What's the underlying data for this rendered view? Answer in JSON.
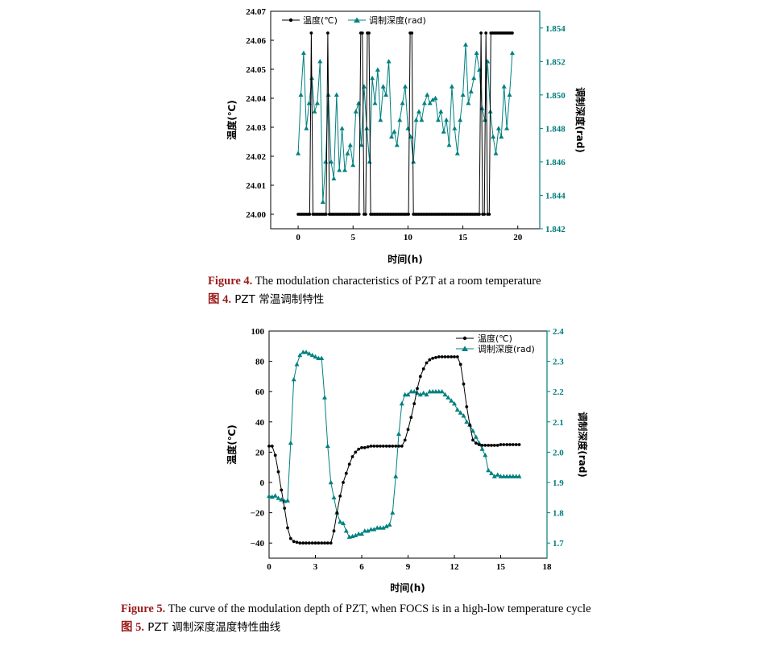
{
  "figure4": {
    "caption_en_label": "Figure 4.",
    "caption_en_text": " The modulation characteristics of PZT at a room temperature",
    "caption_cn_label": "图 4.",
    "caption_cn_text": " PZT 常温调制特性",
    "colors": {
      "temperature": "#000000",
      "depth": "#008080"
    },
    "chart_data": {
      "type": "line",
      "xlabel": "时间(h)",
      "ylabel_left": "温度(℃)",
      "ylabel_right": "调制深度(rad)",
      "xlim": [
        -2.5,
        22
      ],
      "x_ticks": [
        "0",
        "5",
        "10",
        "15",
        "20"
      ],
      "x_tick_values": [
        0,
        5,
        10,
        15,
        20
      ],
      "ylim_left": [
        23.995,
        24.07
      ],
      "y_ticks_left": [
        "24.00",
        "24.01",
        "24.02",
        "24.03",
        "24.04",
        "24.05",
        "24.06",
        "24.07"
      ],
      "y_tick_values_left": [
        24.0,
        24.01,
        24.02,
        24.03,
        24.04,
        24.05,
        24.06,
        24.07
      ],
      "ylim_right": [
        1.842,
        1.855
      ],
      "y_ticks_right": [
        "1.842",
        "1.844",
        "1.846",
        "1.848",
        "1.850",
        "1.852",
        "1.854"
      ],
      "y_tick_values_right": [
        1.842,
        1.844,
        1.846,
        1.848,
        1.85,
        1.852,
        1.854
      ],
      "legend": [
        "温度(℃)",
        "调制深度(rad)"
      ],
      "series": [
        {
          "name": "温度(℃)",
          "axis": "left",
          "x": [
            0.0,
            0.15,
            0.3,
            0.45,
            0.6,
            0.75,
            0.9,
            1.05,
            1.2,
            1.35,
            1.5,
            1.65,
            1.8,
            1.95,
            2.1,
            2.25,
            2.4,
            2.55,
            2.7,
            2.85,
            3.0,
            3.15,
            3.3,
            3.45,
            3.6,
            3.75,
            3.9,
            4.05,
            4.2,
            4.35,
            4.5,
            4.65,
            4.8,
            4.95,
            5.1,
            5.25,
            5.4,
            5.55,
            5.7,
            5.85,
            6.0,
            6.15,
            6.3,
            6.45,
            6.6,
            6.75,
            6.9,
            7.05,
            7.2,
            7.35,
            7.5,
            7.65,
            7.8,
            7.95,
            8.1,
            8.25,
            8.4,
            8.55,
            8.7,
            8.85,
            9.0,
            9.15,
            9.3,
            9.45,
            9.6,
            9.75,
            9.9,
            10.05,
            10.2,
            10.35,
            10.5,
            10.65,
            10.8,
            10.95,
            11.1,
            11.25,
            11.4,
            11.55,
            11.7,
            11.85,
            12.0,
            12.15,
            12.3,
            12.45,
            12.6,
            12.75,
            12.9,
            13.05,
            13.2,
            13.35,
            13.5,
            13.65,
            13.8,
            13.95,
            14.1,
            14.25,
            14.4,
            14.55,
            14.7,
            14.85,
            15.0,
            15.15,
            15.3,
            15.45,
            15.6,
            15.75,
            15.9,
            16.05,
            16.2,
            16.35,
            16.5,
            16.65,
            16.8,
            16.95,
            17.1,
            17.25,
            17.4,
            17.55,
            17.7,
            17.85,
            18.0,
            18.15,
            18.3,
            18.45,
            18.6,
            18.75,
            18.9,
            19.05,
            19.2,
            19.35,
            19.5
          ],
          "values": [
            24.0,
            24.0,
            24.0,
            24.0,
            24.0,
            24.0,
            24.0,
            24.0,
            24.0625,
            24.0,
            24.0,
            24.0,
            24.0,
            24.0,
            24.0,
            24.0,
            24.0,
            24.0,
            24.0625,
            24.0,
            24.0,
            24.0,
            24.0,
            24.0,
            24.0,
            24.0,
            24.0,
            24.0,
            24.0,
            24.0,
            24.0,
            24.0,
            24.0,
            24.0,
            24.0,
            24.0,
            24.0,
            24.0,
            24.0625,
            24.0625,
            24.0,
            24.0,
            24.0625,
            24.0625,
            24.0,
            24.0,
            24.0,
            24.0,
            24.0,
            24.0,
            24.0,
            24.0,
            24.0,
            24.0,
            24.0,
            24.0,
            24.0,
            24.0,
            24.0,
            24.0,
            24.0,
            24.0,
            24.0,
            24.0,
            24.0,
            24.0,
            24.0,
            24.0,
            24.0625,
            24.0625,
            24.0,
            24.0,
            24.0,
            24.0,
            24.0,
            24.0,
            24.0,
            24.0,
            24.0,
            24.0,
            24.0,
            24.0,
            24.0,
            24.0,
            24.0,
            24.0,
            24.0,
            24.0,
            24.0,
            24.0,
            24.0,
            24.0,
            24.0,
            24.0,
            24.0,
            24.0,
            24.0,
            24.0,
            24.0,
            24.0,
            24.0,
            24.0,
            24.0,
            24.0,
            24.0,
            24.0,
            24.0,
            24.0,
            24.0,
            24.0,
            24.0,
            24.0625,
            24.0,
            24.0,
            24.0625,
            24.0,
            24.0,
            24.0625,
            24.0625,
            24.0625,
            24.0625,
            24.0625,
            24.0625,
            24.0625,
            24.0625,
            24.0625,
            24.0625,
            24.0625,
            24.0625,
            24.0625,
            24.0625
          ]
        },
        {
          "name": "调制深度(rad)",
          "axis": "right",
          "x": [
            0.0,
            0.25,
            0.5,
            0.75,
            1.0,
            1.25,
            1.5,
            1.75,
            2.0,
            2.25,
            2.5,
            2.75,
            3.0,
            3.25,
            3.5,
            3.75,
            4.0,
            4.25,
            4.5,
            4.75,
            5.0,
            5.25,
            5.5,
            5.75,
            6.0,
            6.25,
            6.5,
            6.75,
            7.0,
            7.25,
            7.5,
            7.75,
            8.0,
            8.25,
            8.5,
            8.75,
            9.0,
            9.25,
            9.5,
            9.75,
            10.0,
            10.25,
            10.5,
            10.75,
            11.0,
            11.25,
            11.5,
            11.75,
            12.0,
            12.25,
            12.5,
            12.75,
            13.0,
            13.25,
            13.5,
            13.75,
            14.0,
            14.25,
            14.5,
            14.75,
            15.0,
            15.25,
            15.5,
            15.75,
            16.0,
            16.25,
            16.5,
            16.75,
            17.0,
            17.25,
            17.5,
            17.75,
            18.0,
            18.25,
            18.5,
            18.75,
            19.0,
            19.25,
            19.5
          ],
          "values": [
            1.8465,
            1.85,
            1.8525,
            1.848,
            1.8495,
            1.851,
            1.849,
            1.8495,
            1.852,
            1.8436,
            1.846,
            1.85,
            1.846,
            1.845,
            1.85,
            1.8455,
            1.848,
            1.8455,
            1.8465,
            1.847,
            1.8458,
            1.849,
            1.8495,
            1.847,
            1.8505,
            1.848,
            1.846,
            1.851,
            1.8495,
            1.8515,
            1.8485,
            1.8505,
            1.85,
            1.852,
            1.8475,
            1.8478,
            1.847,
            1.8485,
            1.8495,
            1.8505,
            1.848,
            1.8475,
            1.846,
            1.8485,
            1.849,
            1.8485,
            1.8495,
            1.85,
            1.8495,
            1.8497,
            1.8498,
            1.8485,
            1.849,
            1.8478,
            1.8485,
            1.847,
            1.8505,
            1.848,
            1.8465,
            1.8485,
            1.85,
            1.853,
            1.8495,
            1.8502,
            1.851,
            1.8525,
            1.8515,
            1.8492,
            1.8485,
            1.852,
            1.849,
            1.8475,
            1.8465,
            1.848,
            1.8475,
            1.8505,
            1.848,
            1.85,
            1.8525
          ]
        }
      ]
    }
  },
  "figure5": {
    "caption_en_label": "Figure 5.",
    "caption_en_text": " The curve of the modulation depth of PZT, when FOCS is in a high-low temperature cycle",
    "caption_cn_label": "图 5.",
    "caption_cn_text": " PZT 调制深度温度特性曲线",
    "colors": {
      "temperature": "#000000",
      "depth": "#008080"
    },
    "chart_data": {
      "type": "line",
      "xlabel": "时间(h)",
      "ylabel_left": "温度(℃)",
      "ylabel_right": "调制深度(rad)",
      "xlim": [
        0,
        18
      ],
      "x_ticks": [
        "0",
        "3",
        "6",
        "9",
        "12",
        "15",
        "18"
      ],
      "x_tick_values": [
        0,
        3,
        6,
        9,
        12,
        15,
        18
      ],
      "ylim_left": [
        -50,
        100
      ],
      "y_ticks_left": [
        "100",
        "80",
        "60",
        "40",
        "20",
        "0",
        "−20",
        "−40"
      ],
      "y_tick_values_left": [
        100,
        80,
        60,
        40,
        20,
        0,
        -20,
        -40
      ],
      "ylim_right": [
        1.65,
        2.4
      ],
      "y_ticks_right": [
        "2.4",
        "2.3",
        "2.2",
        "2.1",
        "2.0",
        "1.9",
        "1.8",
        "1.7"
      ],
      "y_tick_values_right": [
        2.4,
        2.3,
        2.2,
        2.1,
        2.0,
        1.9,
        1.8,
        1.7
      ],
      "legend": [
        "温度(℃)",
        "调制深度(rad)"
      ],
      "series": [
        {
          "name": "温度(℃)",
          "axis": "left",
          "x": [
            0.0,
            0.2,
            0.4,
            0.6,
            0.8,
            1.0,
            1.2,
            1.4,
            1.6,
            1.8,
            2.0,
            2.2,
            2.4,
            2.6,
            2.8,
            3.0,
            3.2,
            3.4,
            3.6,
            3.8,
            4.0,
            4.2,
            4.4,
            4.6,
            4.8,
            5.0,
            5.2,
            5.4,
            5.6,
            5.8,
            6.0,
            6.2,
            6.4,
            6.6,
            6.8,
            7.0,
            7.2,
            7.4,
            7.6,
            7.8,
            8.0,
            8.2,
            8.4,
            8.6,
            8.8,
            9.0,
            9.2,
            9.4,
            9.6,
            9.8,
            10.0,
            10.2,
            10.4,
            10.6,
            10.8,
            11.0,
            11.2,
            11.4,
            11.6,
            11.8,
            12.0,
            12.2,
            12.4,
            12.6,
            12.8,
            13.0,
            13.2,
            13.4,
            13.6,
            13.8,
            14.0,
            14.2,
            14.4,
            14.6,
            14.8,
            15.0,
            15.2,
            15.4,
            15.6,
            15.8,
            16.0,
            16.2
          ],
          "values": [
            24,
            24,
            18,
            7,
            -5,
            -17,
            -30,
            -37,
            -39,
            -39.5,
            -40,
            -40,
            -40,
            -40,
            -40,
            -40,
            -40,
            -40,
            -40,
            -40,
            -40,
            -32,
            -20,
            -9,
            0,
            6,
            12,
            17,
            20,
            22,
            23,
            23,
            23.5,
            24,
            24,
            24,
            24,
            24,
            24,
            24,
            24,
            24,
            24,
            24,
            28,
            35,
            43,
            52,
            62,
            70,
            75,
            79,
            81,
            82,
            82.5,
            83,
            83,
            83,
            83,
            83,
            83,
            83,
            78,
            65,
            50,
            38,
            28,
            26,
            25,
            24.5,
            24.5,
            24.5,
            24.5,
            24.5,
            24.5,
            25,
            25,
            25,
            25,
            25,
            25,
            25
          ]
        },
        {
          "name": "调制深度(rad)",
          "axis": "right",
          "x": [
            0.0,
            0.2,
            0.4,
            0.6,
            0.8,
            1.0,
            1.2,
            1.4,
            1.6,
            1.8,
            2.0,
            2.2,
            2.4,
            2.6,
            2.8,
            3.0,
            3.2,
            3.4,
            3.6,
            3.8,
            4.0,
            4.2,
            4.4,
            4.6,
            4.8,
            5.0,
            5.2,
            5.4,
            5.6,
            5.8,
            6.0,
            6.2,
            6.4,
            6.6,
            6.8,
            7.0,
            7.2,
            7.4,
            7.6,
            7.8,
            8.0,
            8.2,
            8.4,
            8.6,
            8.8,
            9.0,
            9.2,
            9.4,
            9.6,
            9.8,
            10.0,
            10.2,
            10.4,
            10.6,
            10.8,
            11.0,
            11.2,
            11.4,
            11.6,
            11.8,
            12.0,
            12.2,
            12.4,
            12.6,
            12.8,
            13.0,
            13.2,
            13.4,
            13.6,
            13.8,
            14.0,
            14.2,
            14.4,
            14.6,
            14.8,
            15.0,
            15.2,
            15.4,
            15.6,
            15.8,
            16.0,
            16.2
          ],
          "values": [
            1.855,
            1.852,
            1.856,
            1.848,
            1.843,
            1.838,
            1.84,
            2.03,
            2.24,
            2.29,
            2.32,
            2.33,
            2.33,
            2.325,
            2.32,
            2.315,
            2.31,
            2.31,
            2.18,
            2.02,
            1.9,
            1.85,
            1.8,
            1.77,
            1.765,
            1.74,
            1.72,
            1.722,
            1.725,
            1.73,
            1.73,
            1.74,
            1.74,
            1.745,
            1.745,
            1.75,
            1.75,
            1.75,
            1.755,
            1.76,
            1.8,
            1.92,
            2.06,
            2.16,
            2.19,
            2.19,
            2.2,
            2.2,
            2.195,
            2.19,
            2.195,
            2.19,
            2.2,
            2.2,
            2.2,
            2.2,
            2.2,
            2.19,
            2.18,
            2.17,
            2.16,
            2.14,
            2.13,
            2.12,
            2.1,
            2.09,
            2.07,
            2.05,
            2.03,
            2.01,
            1.99,
            1.94,
            1.93,
            1.92,
            1.925,
            1.92,
            1.92,
            1.92,
            1.92,
            1.92,
            1.92,
            1.92
          ]
        }
      ]
    }
  }
}
